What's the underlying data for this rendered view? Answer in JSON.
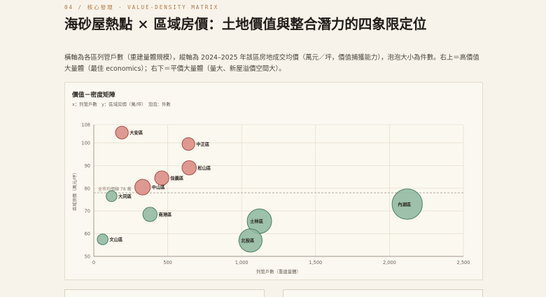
{
  "header": {
    "eyebrow": "04 / 核心發現 · VALUE-DENSITY MATRIX",
    "title": "海砂屋熱點 × 區域房價：土地價值與整合潛力的四象限定位",
    "lead": "橫軸為各區列管戶數（重建量體規模），縱軸為 2024–2025 年該區房地成交均價（萬元／坪，價值捕獲能力），泡泡大小為件數。右上＝高價值大量體（最佳 economics）；右下＝平價大量體（量大、新屋溢價空間大）。"
  },
  "card": {
    "title": "價值－密度矩陣",
    "subtitle": "x：列管戶數　y：區域房價（萬/坪）　泡泡：件數"
  },
  "colors": {
    "high": "#d98b84",
    "high_stroke": "#a8504a",
    "low": "#8fb8a0",
    "low_stroke": "#4f7f64",
    "avg_line": "#b5aea3",
    "grid": "#e6e0d4"
  },
  "chart_data": {
    "type": "scatter",
    "xlabel": "列管戶數（重建量體）",
    "ylabel": "區域房價（萬元/坪）",
    "xlim": [
      0,
      2500
    ],
    "ylim": [
      50,
      108
    ],
    "xticks": [
      0,
      500,
      1000,
      1500,
      2000,
      2500
    ],
    "xtick_labels": [
      "0",
      "500",
      "1,000",
      "1,500",
      "2,000",
      "2,500"
    ],
    "yticks": [
      50,
      60,
      70,
      80,
      90,
      100,
      108
    ],
    "grid": true,
    "reference_line": {
      "y": 78,
      "label": "全市均價線  78  萬"
    },
    "points": [
      {
        "name": "大安區",
        "x": 190,
        "y": 104.5,
        "count": 2,
        "group": "high"
      },
      {
        "name": "中正區",
        "x": 640,
        "y": 99.5,
        "count": 2,
        "group": "high"
      },
      {
        "name": "松山區",
        "x": 645,
        "y": 89,
        "count": 3,
        "group": "high"
      },
      {
        "name": "信義區",
        "x": 460,
        "y": 84.5,
        "count": 3,
        "group": "high"
      },
      {
        "name": "中山區",
        "x": 330,
        "y": 80.5,
        "count": 4,
        "group": "high"
      },
      {
        "name": "大同區",
        "x": 120,
        "y": 76.5,
        "count": 1,
        "group": "low"
      },
      {
        "name": "南港區",
        "x": 380,
        "y": 68.5,
        "count": 3,
        "group": "low"
      },
      {
        "name": "文山區",
        "x": 60,
        "y": 57.5,
        "count": 1,
        "group": "low"
      },
      {
        "name": "內湖區",
        "x": 2120,
        "y": 73,
        "count": 26,
        "group": "low"
      },
      {
        "name": "士林區",
        "x": 1120,
        "y": 65.5,
        "count": 15,
        "group": "low"
      },
      {
        "name": "北投區",
        "x": 1060,
        "y": 57,
        "count": 13,
        "group": "low"
      }
    ]
  }
}
